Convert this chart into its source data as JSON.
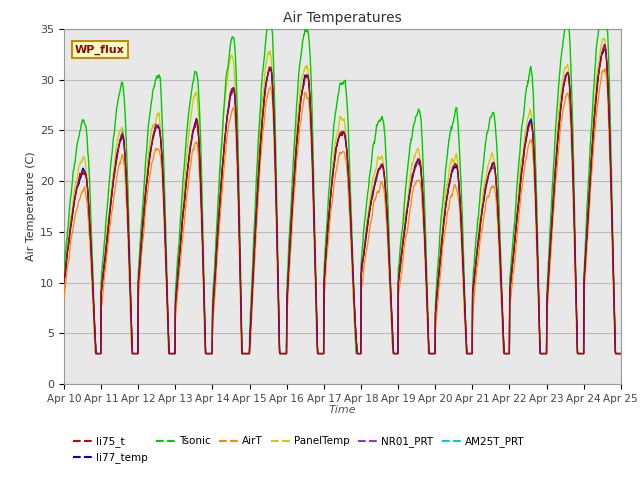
{
  "title": "Air Temperatures",
  "xlabel": "Time",
  "ylabel": "Air Temperature (C)",
  "ylim": [
    0,
    35
  ],
  "xlim": [
    0,
    15
  ],
  "x_tick_labels": [
    "Apr 10",
    "Apr 11",
    "Apr 12",
    "Apr 13",
    "Apr 14",
    "Apr 15",
    "Apr 16",
    "Apr 17",
    "Apr 18",
    "Apr 19",
    "Apr 20",
    "Apr 21",
    "Apr 22",
    "Apr 23",
    "Apr 24",
    "Apr 25"
  ],
  "grid_color": "#c8c8c8",
  "bg_color": "#e0e0e0",
  "plot_bg": "#e8e8e8",
  "series_colors": {
    "li75_t": "#cc0000",
    "li77_temp": "#0000cc",
    "Tsonic": "#00cc00",
    "AirT": "#ff8800",
    "PanelTemp": "#cccc00",
    "NR01_PRT": "#9933cc",
    "AM25T_PRT": "#00cccc"
  },
  "legend_label": "WP_flux",
  "legend_box_bg": "#ffffcc",
  "legend_box_border": "#cc8800",
  "legend_box_text": "#990000",
  "day_peaks": [
    22,
    20,
    28,
    23,
    28,
    30,
    32,
    29,
    21,
    22,
    22,
    21,
    22,
    29,
    32,
    34
  ],
  "day_mins": [
    10,
    9,
    10,
    8,
    7,
    4,
    8,
    10,
    11,
    10,
    7,
    9,
    9,
    8,
    10,
    13
  ]
}
